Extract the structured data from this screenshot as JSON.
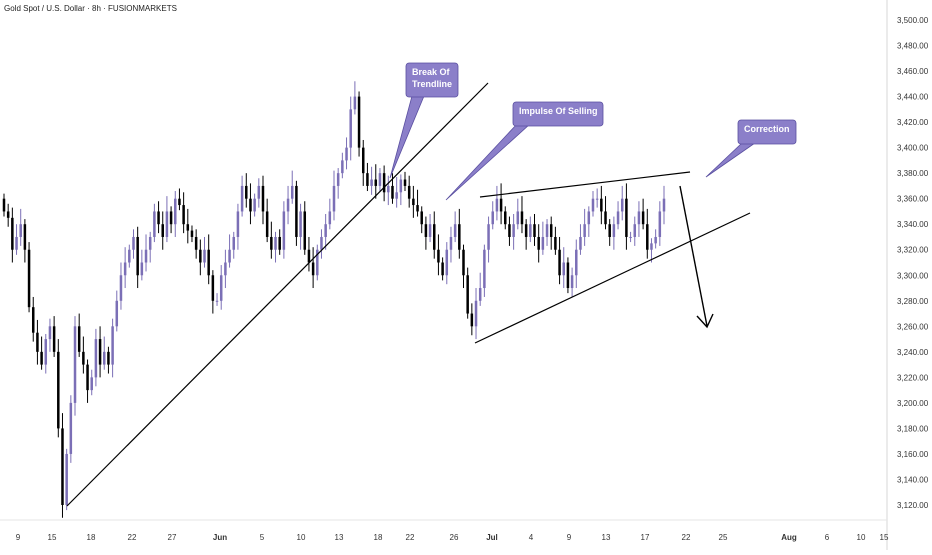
{
  "header": {
    "symbol_line": "Gold Spot / U.S. Dollar · 8h · FUSIONMARKETS"
  },
  "colors": {
    "bull": "#7b6fb6",
    "bear": "#000000",
    "callout": "#8b7fc9",
    "axis_text": "#333333",
    "line": "#000000"
  },
  "chart_data": {
    "type": "candlestick",
    "title": "",
    "xlabel": "",
    "ylabel": "",
    "ylim": [
      3110,
      3510
    ],
    "grid": false,
    "y_ticks": [
      3500,
      3480,
      3460,
      3440,
      3420,
      3400,
      3380,
      3360,
      3340,
      3320,
      3300,
      3280,
      3260,
      3240,
      3220,
      3200,
      3180,
      3160,
      3140,
      3120
    ],
    "x_tick_labels": [
      "9",
      "15",
      "18",
      "22",
      "27",
      "Jun",
      "5",
      "10",
      "13",
      "18",
      "22",
      "26",
      "Jul",
      "4",
      "9",
      "13",
      "17",
      "22",
      "25",
      "Aug",
      "6",
      "10",
      "15"
    ],
    "closes": [
      3350,
      3345,
      3320,
      3330,
      3340,
      3320,
      3275,
      3255,
      3240,
      3230,
      3250,
      3260,
      3240,
      3180,
      3120,
      3160,
      3200,
      3260,
      3240,
      3230,
      3210,
      3220,
      3250,
      3230,
      3240,
      3230,
      3260,
      3280,
      3300,
      3310,
      3320,
      3330,
      3300,
      3310,
      3320,
      3330,
      3350,
      3340,
      3330,
      3350,
      3340,
      3360,
      3355,
      3340,
      3335,
      3330,
      3320,
      3310,
      3320,
      3300,
      3280,
      3280,
      3300,
      3310,
      3320,
      3330,
      3350,
      3370,
      3360,
      3350,
      3360,
      3370,
      3350,
      3330,
      3320,
      3330,
      3320,
      3350,
      3360,
      3370,
      3330,
      3350,
      3320,
      3310,
      3300,
      3320,
      3330,
      3340,
      3350,
      3370,
      3380,
      3390,
      3400,
      3430,
      3440,
      3400,
      3380,
      3370,
      3375,
      3370,
      3380,
      3365,
      3370,
      3360,
      3365,
      3375,
      3370,
      3360,
      3355,
      3350,
      3340,
      3330,
      3340,
      3320,
      3310,
      3300,
      3320,
      3330,
      3340,
      3320,
      3300,
      3270,
      3260,
      3280,
      3290,
      3320,
      3340,
      3350,
      3360,
      3350,
      3340,
      3330,
      3340,
      3350,
      3340,
      3330,
      3340,
      3330,
      3320,
      3330,
      3340,
      3330,
      3320,
      3300,
      3310,
      3290,
      3300,
      3320,
      3330,
      3340,
      3350,
      3360,
      3360,
      3350,
      3340,
      3330,
      3340,
      3350,
      3360,
      3330,
      3330,
      3340,
      3350,
      3340,
      3320,
      3325,
      3330,
      3350,
      3360
    ]
  },
  "annotations": {
    "break": "Break Of\nTrendline",
    "impulse": "Impulse Of Selling",
    "correction": "Correction"
  }
}
